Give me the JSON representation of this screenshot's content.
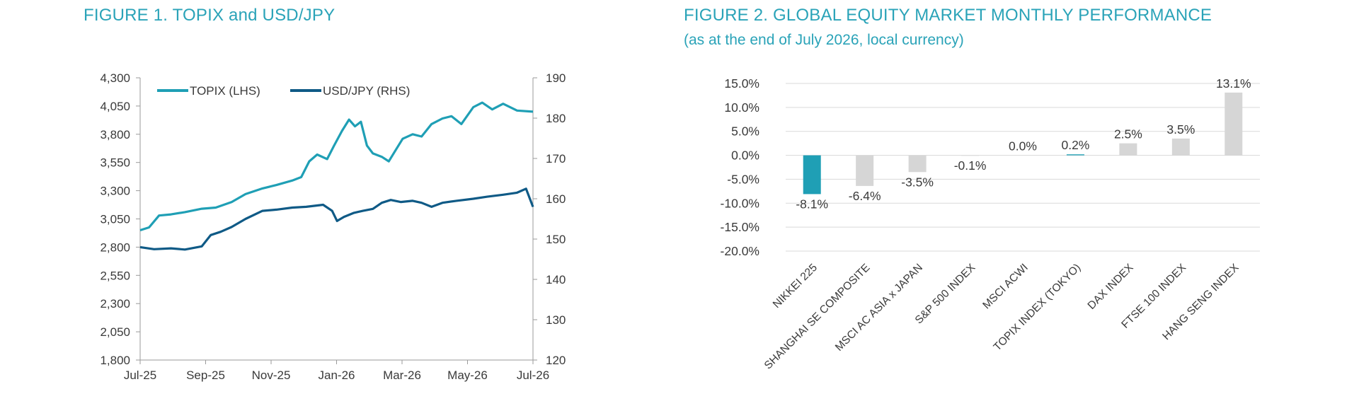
{
  "figure1": {
    "title": "FIGURE 1. TOPIX and USD/JPY",
    "chart_data": {
      "type": "line",
      "dual_axis": true,
      "x_ticks": [
        "Jul-25",
        "Sep-25",
        "Nov-25",
        "Jan-26",
        "Mar-26",
        "May-26",
        "Jul-26"
      ],
      "x_range": [
        "2025-07-01",
        "2026-07-31"
      ],
      "left_axis": {
        "ticks": [
          "4,300",
          "4,050",
          "3,800",
          "3,550",
          "3,300",
          "3,050",
          "2,800",
          "2,550",
          "2,300",
          "2,050",
          "1,800"
        ],
        "ylim": [
          1800,
          4300
        ]
      },
      "right_axis": {
        "ticks": [
          "190",
          "180",
          "170",
          "160",
          "150",
          "140",
          "130",
          "120"
        ],
        "ylim": [
          120,
          190
        ]
      },
      "legend": {
        "placement": "top-left"
      },
      "series": [
        {
          "name": "TOPIX (LHS)",
          "axis": "left",
          "color": "#1f9fb5",
          "points": [
            [
              "2025-07-01",
              2950
            ],
            [
              "2025-07-10",
              2975
            ],
            [
              "2025-07-20",
              3080
            ],
            [
              "2025-08-01",
              3090
            ],
            [
              "2025-08-15",
              3110
            ],
            [
              "2025-09-01",
              3140
            ],
            [
              "2025-09-15",
              3150
            ],
            [
              "2025-10-01",
              3200
            ],
            [
              "2025-10-15",
              3270
            ],
            [
              "2025-11-01",
              3320
            ],
            [
              "2025-11-15",
              3350
            ],
            [
              "2025-12-01",
              3390
            ],
            [
              "2025-12-10",
              3420
            ],
            [
              "2025-12-18",
              3560
            ],
            [
              "2025-12-26",
              3620
            ],
            [
              "2026-01-05",
              3580
            ],
            [
              "2026-01-12",
              3700
            ],
            [
              "2026-01-20",
              3830
            ],
            [
              "2026-01-27",
              3930
            ],
            [
              "2026-02-02",
              3870
            ],
            [
              "2026-02-08",
              3910
            ],
            [
              "2026-02-14",
              3700
            ],
            [
              "2026-02-20",
              3630
            ],
            [
              "2026-03-01",
              3600
            ],
            [
              "2026-03-08",
              3560
            ],
            [
              "2026-03-15",
              3660
            ],
            [
              "2026-03-22",
              3760
            ],
            [
              "2026-04-01",
              3800
            ],
            [
              "2026-04-10",
              3780
            ],
            [
              "2026-04-20",
              3890
            ],
            [
              "2026-05-01",
              3940
            ],
            [
              "2026-05-10",
              3960
            ],
            [
              "2026-05-20",
              3890
            ],
            [
              "2026-06-01",
              4040
            ],
            [
              "2026-06-10",
              4080
            ],
            [
              "2026-06-20",
              4020
            ],
            [
              "2026-07-01",
              4070
            ],
            [
              "2026-07-15",
              4010
            ],
            [
              "2026-07-31",
              4000
            ]
          ]
        },
        {
          "name": "USD/JPY (RHS)",
          "axis": "right",
          "color": "#0f5a86",
          "points": [
            [
              "2025-07-01",
              148.0
            ],
            [
              "2025-07-15",
              147.5
            ],
            [
              "2025-08-01",
              147.7
            ],
            [
              "2025-08-15",
              147.4
            ],
            [
              "2025-09-01",
              148.2
            ],
            [
              "2025-09-10",
              151.0
            ],
            [
              "2025-09-20",
              151.8
            ],
            [
              "2025-10-01",
              153.0
            ],
            [
              "2025-10-15",
              155.0
            ],
            [
              "2025-11-01",
              157.0
            ],
            [
              "2025-11-15",
              157.3
            ],
            [
              "2025-12-01",
              157.8
            ],
            [
              "2025-12-15",
              158.0
            ],
            [
              "2026-01-01",
              158.5
            ],
            [
              "2026-01-10",
              157.0
            ],
            [
              "2026-01-15",
              154.5
            ],
            [
              "2026-01-22",
              155.5
            ],
            [
              "2026-02-01",
              156.5
            ],
            [
              "2026-02-10",
              157.0
            ],
            [
              "2026-02-20",
              157.5
            ],
            [
              "2026-03-01",
              159.0
            ],
            [
              "2026-03-10",
              159.7
            ],
            [
              "2026-03-20",
              159.2
            ],
            [
              "2026-04-01",
              159.5
            ],
            [
              "2026-04-10",
              159.0
            ],
            [
              "2026-04-20",
              158.0
            ],
            [
              "2026-05-01",
              159.0
            ],
            [
              "2026-05-15",
              159.5
            ],
            [
              "2026-06-01",
              160.0
            ],
            [
              "2026-06-15",
              160.5
            ],
            [
              "2026-07-01",
              161.0
            ],
            [
              "2026-07-15",
              161.5
            ],
            [
              "2026-07-24",
              162.5
            ],
            [
              "2026-07-31",
              158.0
            ]
          ]
        }
      ]
    }
  },
  "figure2": {
    "title": "FIGURE 2. GLOBAL EQUITY MARKET MONTHLY PERFORMANCE",
    "subtitle": "(as at the end of July 2026, local currency)",
    "chart_data": {
      "type": "bar",
      "categories": [
        "NIKKEI 225",
        "SHANGHAI SE COMPOSITE",
        "MSCI AC ASIA x JAPAN",
        "S&P 500 INDEX",
        "MSCI ACWI",
        "TOPIX INDEX (TOKYO)",
        "DAX INDEX",
        "FTSE 100 INDEX",
        "HANG SENG INDEX"
      ],
      "values": [
        -8.1,
        -6.4,
        -3.5,
        -0.1,
        0.0,
        0.2,
        2.5,
        3.5,
        13.1
      ],
      "data_labels": [
        "-8.1%",
        "-6.4%",
        "-3.5%",
        "-0.1%",
        "0.0%",
        "0.2%",
        "2.5%",
        "3.5%",
        "13.1%"
      ],
      "ylim": [
        -20,
        15
      ],
      "y_ticks": [
        "15.0%",
        "10.0%",
        "5.0%",
        "0.0%",
        "-5.0%",
        "-10.0%",
        "-15.0%",
        "-20.0%"
      ],
      "highlight_color": "#1f9fb5",
      "default_color": "#d6d6d6",
      "highlighted": [
        "NIKKEI 225",
        "TOPIX INDEX (TOKYO)"
      ],
      "grid": true
    }
  }
}
